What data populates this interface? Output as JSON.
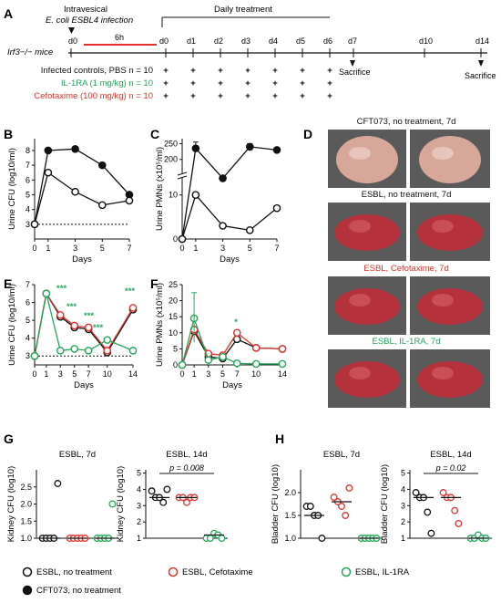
{
  "colors": {
    "black": "#111111",
    "red": "#e0322b",
    "green": "#22a85a"
  },
  "panelA": {
    "letter": "A",
    "infection_line1": "Intravesical",
    "infection_line2": "E. coli ESBL4 infection",
    "daily_label": "Daily treatment",
    "mice_label": "Irf3−/− mice",
    "six_h": "6h",
    "timepoints": [
      "d0",
      "d0",
      "d1",
      "d2",
      "d3",
      "d4",
      "d5",
      "d6",
      "d7",
      "d10",
      "d14"
    ],
    "sacrifice": "Sacrifice",
    "rows": [
      {
        "label": "Infected controls, PBS n = 10",
        "color": "black"
      },
      {
        "label": "IL-1RA (1 mg/kg) n = 10",
        "color": "green"
      },
      {
        "label": "Cefotaxime (100 mg/kg) n = 10",
        "color": "red"
      }
    ],
    "plus": "+"
  },
  "panelD": {
    "letter": "D",
    "captions": [
      {
        "text": "CFT073, no treatment, 7d",
        "color": "black"
      },
      {
        "text": "ESBL, no treatment, 7d",
        "color": "black"
      },
      {
        "text": "ESBL, Cefotaxime, 7d",
        "color": "red"
      },
      {
        "text": "ESBL, IL-1RA, 7d",
        "color": "green"
      }
    ]
  },
  "legend": [
    {
      "label": "ESBL, no treatment",
      "style": "open",
      "color": "black"
    },
    {
      "label": "ESBL, Cefotaxime",
      "style": "open",
      "color": "red"
    },
    {
      "label": "ESBL, IL-1RA",
      "style": "open",
      "color": "green"
    },
    {
      "label": "CFT073, no treatment",
      "style": "filled",
      "color": "black"
    }
  ],
  "chart_data": [
    {
      "id": "B",
      "type": "line",
      "letter": "B",
      "xlabel": "Days",
      "ylabel": "Urine CFU (log10/ml)",
      "x": [
        0,
        1,
        3,
        5,
        7
      ],
      "xlim": [
        0,
        7
      ],
      "ylim": [
        2,
        8.8
      ],
      "yticks": [
        3,
        4,
        5,
        6,
        7,
        8
      ],
      "baseline": 3,
      "series": [
        {
          "style": "filled",
          "color": "black",
          "values": [
            3,
            8.0,
            8.1,
            7.0,
            5.0
          ]
        },
        {
          "style": "open",
          "color": "black",
          "values": [
            3,
            6.5,
            5.2,
            4.3,
            4.6
          ]
        }
      ]
    },
    {
      "id": "C",
      "type": "line",
      "letter": "C",
      "xlabel": "Days",
      "ylabel": "Urine PMNs (x10⁵/ml)",
      "x": [
        0,
        1,
        3,
        5,
        7
      ],
      "xlim": [
        0,
        7
      ],
      "yticks_low": [
        0,
        10
      ],
      "yticks_high": [
        200,
        250
      ],
      "series": [
        {
          "style": "filled",
          "color": "black",
          "values": [
            0,
            235,
            140,
            240,
            230
          ]
        },
        {
          "style": "open",
          "color": "black",
          "values": [
            0,
            10,
            3,
            2,
            7
          ]
        }
      ]
    },
    {
      "id": "E",
      "type": "line",
      "letter": "E",
      "xlabel": "Days",
      "ylabel": "Urine CFU (log10/ml)",
      "x": [
        0,
        1,
        3,
        5,
        7,
        10,
        14
      ],
      "xlim": [
        0,
        14
      ],
      "ylim": [
        2.5,
        7
      ],
      "yticks": [
        3,
        4,
        5,
        6,
        7
      ],
      "baseline": 3,
      "xticklabels": [
        "0",
        "1",
        "3",
        "5",
        "7",
        "10",
        "14"
      ],
      "series": [
        {
          "style": "open",
          "color": "black",
          "values": [
            3,
            6.5,
            5.2,
            4.6,
            4.5,
            3.2,
            5.6
          ]
        },
        {
          "style": "open",
          "color": "red",
          "values": [
            3,
            6.5,
            5.3,
            4.7,
            4.6,
            3.3,
            5.7
          ]
        },
        {
          "style": "open",
          "color": "green",
          "values": [
            3,
            6.5,
            3.3,
            3.4,
            3.3,
            3.9,
            3.3
          ]
        }
      ],
      "annotations": [
        "***",
        "***",
        "***",
        "***",
        "***"
      ]
    },
    {
      "id": "F",
      "type": "line",
      "letter": "F",
      "xlabel": "Days",
      "ylabel": "Urine PMNs (x10⁵/ml)",
      "x": [
        0,
        1,
        3,
        5,
        7,
        10,
        14
      ],
      "xlim": [
        0,
        14
      ],
      "ylim": [
        0,
        25
      ],
      "yticks": [
        0,
        5,
        10,
        15,
        20,
        25
      ],
      "xticklabels": [
        "0",
        "1",
        "3",
        "5",
        "7",
        "10",
        "14"
      ],
      "series": [
        {
          "style": "open",
          "color": "black",
          "values": [
            0,
            10.5,
            2.5,
            2.0,
            8.0,
            5.3,
            5.0
          ]
        },
        {
          "style": "open",
          "color": "red",
          "values": [
            0,
            11,
            3.5,
            3.0,
            10.0,
            5.3,
            5.0
          ]
        },
        {
          "style": "open",
          "color": "green",
          "values": [
            0,
            14.5,
            1.5,
            2.5,
            0.5,
            0.3,
            0.3
          ]
        }
      ],
      "error_green_day1": [
        7,
        22.5
      ],
      "annotation": "*"
    },
    {
      "id": "G1",
      "type": "scatter",
      "letter": "G",
      "title": "ESBL, 7d",
      "ylabel": "Kidney CFU (log10)",
      "ylim": [
        1,
        3.0
      ],
      "yticks": [
        1.0,
        1.5,
        2.0,
        2.5
      ],
      "groups": [
        {
          "color": "black",
          "values": [
            1,
            1,
            1,
            1,
            2.6
          ],
          "median": 1.0
        },
        {
          "color": "red",
          "values": [
            1,
            1,
            1,
            1,
            1
          ],
          "median": 1.0
        },
        {
          "color": "green",
          "values": [
            1,
            1,
            1,
            1,
            2.0
          ],
          "median": 1.0
        }
      ]
    },
    {
      "id": "G2",
      "type": "scatter",
      "title": "ESBL, 14d",
      "ylabel": "Kidney CFU (log10)",
      "ylim": [
        1,
        5.2
      ],
      "yticks": [
        1,
        2,
        3,
        4,
        5
      ],
      "pvalue": "p = 0.008",
      "groups": [
        {
          "color": "black",
          "values": [
            3.9,
            3.5,
            3.5,
            3.2,
            4.0
          ],
          "median": 3.5
        },
        {
          "color": "red",
          "values": [
            3.5,
            3.5,
            3.2,
            3.5,
            3.5
          ],
          "median": 3.5
        },
        {
          "color": "green",
          "values": [
            1,
            1,
            1.3,
            1.2,
            1
          ],
          "median": 1.2
        }
      ]
    },
    {
      "id": "H1",
      "type": "scatter",
      "letter": "H",
      "title": "ESBL, 7d",
      "ylabel": "Bladder CFU (log10)",
      "ylim": [
        1,
        2.5
      ],
      "yticks": [
        1.0,
        1.5,
        2.0
      ],
      "groups": [
        {
          "color": "black",
          "values": [
            1.7,
            1.7,
            1.5,
            1.5,
            1.0
          ],
          "median": 1.5
        },
        {
          "color": "red",
          "values": [
            1.9,
            1.8,
            1.7,
            1.5,
            2.1
          ],
          "median": 1.8
        },
        {
          "color": "green",
          "values": [
            1,
            1,
            1,
            1,
            1
          ],
          "median": 1.0
        }
      ]
    },
    {
      "id": "H2",
      "type": "scatter",
      "title": "ESBL, 14d",
      "ylabel": "Bladder CFU (log10)",
      "ylim": [
        1,
        5.2
      ],
      "yticks": [
        1,
        2,
        3,
        4,
        5
      ],
      "pvalue": "p = 0.02",
      "groups": [
        {
          "color": "black",
          "values": [
            3.8,
            3.5,
            3.5,
            2.6,
            1.3
          ],
          "median": 3.5
        },
        {
          "color": "red",
          "values": [
            3.8,
            3.5,
            3.5,
            2.7,
            1.9
          ],
          "median": 3.5
        },
        {
          "color": "green",
          "values": [
            1,
            1,
            1.2,
            1,
            1
          ],
          "median": 1.0
        }
      ]
    }
  ]
}
